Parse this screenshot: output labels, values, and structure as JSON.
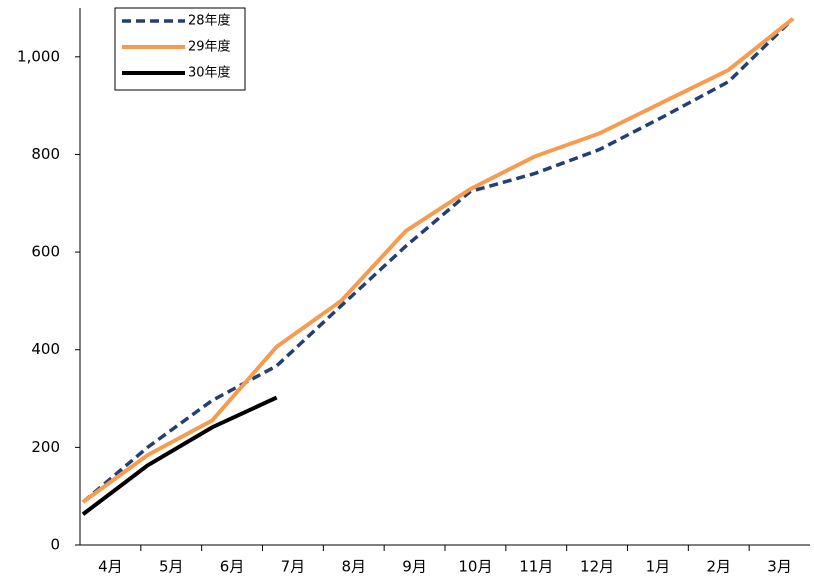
{
  "chart_data": {
    "type": "line",
    "categories": [
      "4月",
      "5月",
      "6月",
      "7月",
      "8月",
      "9月",
      "10月",
      "11月",
      "12月",
      "1月",
      "2月",
      "3月"
    ],
    "series": [
      {
        "name": "28年度",
        "color": "#243f73",
        "dash": true,
        "values": [
          88,
          200,
          296,
          367,
          490,
          612,
          724,
          761,
          810,
          878,
          949,
          1078
        ]
      },
      {
        "name": "29年度",
        "color": "#f59c4f",
        "dash": false,
        "values": [
          88,
          184,
          255,
          406,
          500,
          643,
          729,
          796,
          843,
          908,
          973,
          1078
        ]
      },
      {
        "name": "30年度",
        "color": "#000000",
        "dash": false,
        "values": [
          63,
          163,
          241,
          302,
          null,
          null,
          null,
          null,
          null,
          null,
          null,
          null
        ]
      }
    ],
    "ylim": [
      0,
      1100
    ],
    "yticks": [
      0,
      200,
      400,
      600,
      800,
      {
        "value": 1000,
        "label": "1,000"
      }
    ],
    "legend": "upper-left"
  }
}
